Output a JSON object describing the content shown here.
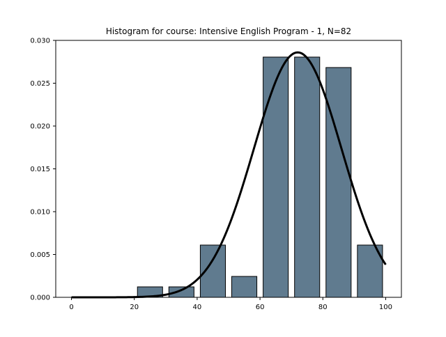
{
  "chart_data": {
    "type": "bar",
    "title": "Histogram for course: Intensive English Program - 1,  N=82",
    "xlabel": "",
    "ylabel": "",
    "xlim": [
      -5,
      105
    ],
    "ylim": [
      0,
      0.03
    ],
    "x_ticks": [
      0,
      20,
      40,
      60,
      80,
      100
    ],
    "x_tick_labels": [
      "0",
      "20",
      "40",
      "60",
      "80",
      "100"
    ],
    "y_ticks": [
      0,
      0.005,
      0.01,
      0.015,
      0.02,
      0.025,
      0.03
    ],
    "y_tick_labels": [
      "0.000",
      "0.005",
      "0.010",
      "0.015",
      "0.020",
      "0.025",
      "0.030"
    ],
    "grid": false,
    "bar_color": "#607b8f",
    "bar_edge_color": "#000000",
    "curve_color": "#000000",
    "bins": [
      {
        "start": 0,
        "end": 10,
        "value": 0
      },
      {
        "start": 10,
        "end": 20,
        "value": 0
      },
      {
        "start": 20,
        "end": 30,
        "value": 0.00122
      },
      {
        "start": 30,
        "end": 40,
        "value": 0.00122
      },
      {
        "start": 40,
        "end": 50,
        "value": 0.0061
      },
      {
        "start": 50,
        "end": 60,
        "value": 0.00244
      },
      {
        "start": 60,
        "end": 70,
        "value": 0.02805
      },
      {
        "start": 70,
        "end": 80,
        "value": 0.02805
      },
      {
        "start": 80,
        "end": 90,
        "value": 0.02683
      },
      {
        "start": 90,
        "end": 100,
        "value": 0.0061
      }
    ],
    "density_curve": {
      "type": "normal",
      "mean": 72,
      "std": 13.95,
      "x_range": [
        0,
        100
      ]
    }
  }
}
